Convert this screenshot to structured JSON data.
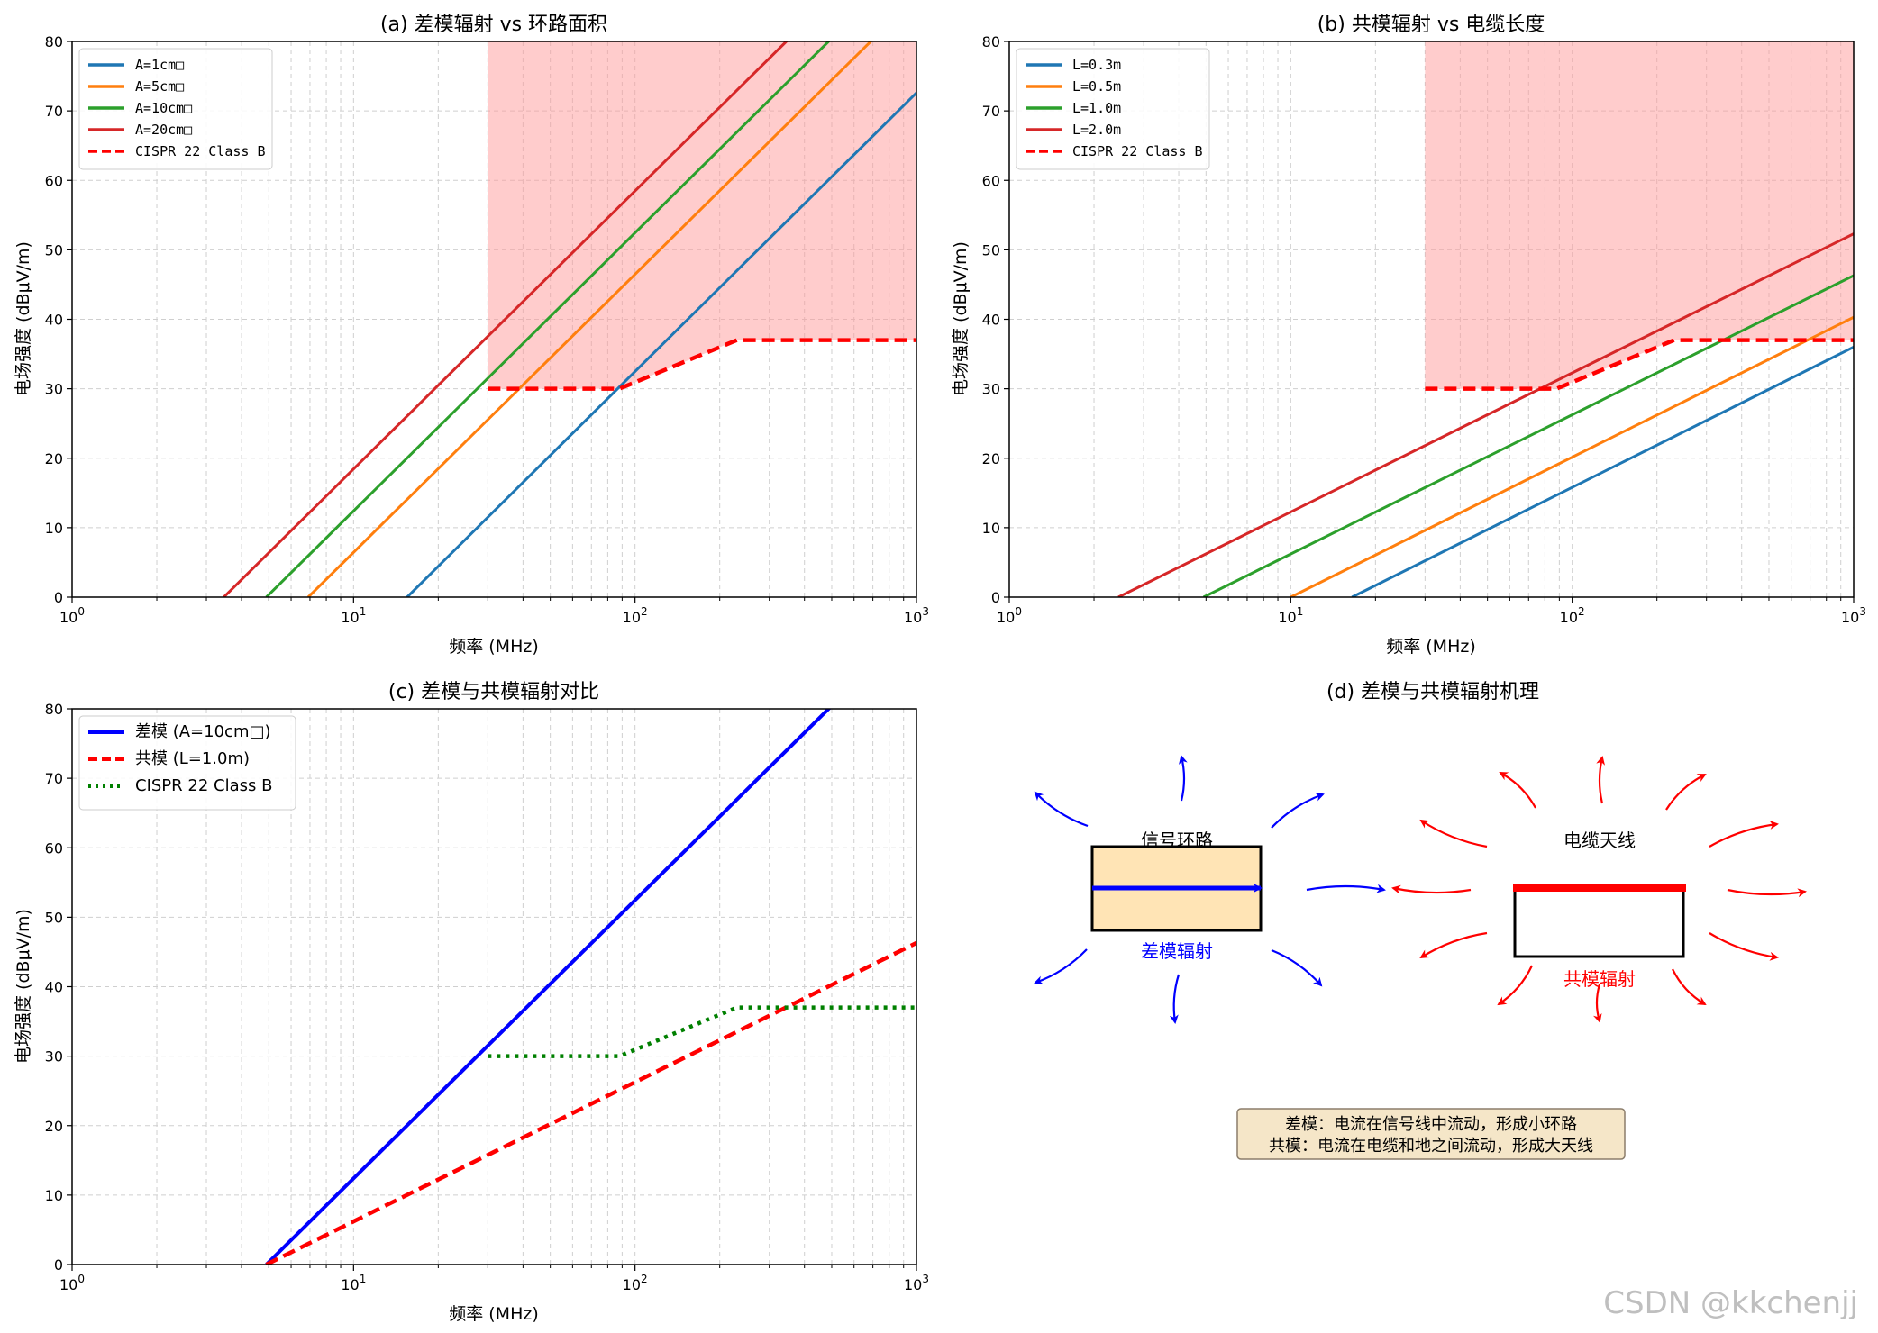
{
  "chart_data": [
    {
      "type": "line",
      "title": "(a) 差模辐射 vs 环路面积",
      "xlabel": "频率 (MHz)",
      "ylabel": "电场强度 (dBμV/m)",
      "xscale": "log",
      "xlim": [
        1,
        1000
      ],
      "ylim": [
        0,
        80
      ],
      "yticks": [
        0,
        10,
        20,
        30,
        40,
        50,
        60,
        70,
        80
      ],
      "grid": true,
      "legend": "top-left",
      "shade": {
        "x_from": 30,
        "x_to": 1000,
        "color": "#ff9a9a"
      },
      "series": [
        {
          "name": "A=1cm□",
          "color": "#1f77b4",
          "points": [
            [
              15.5,
              0
            ],
            [
              1000,
              72.6
            ]
          ]
        },
        {
          "name": "A=5cm□",
          "color": "#ff7f0e",
          "points": [
            [
              6.9,
              0
            ],
            [
              1000,
              86.5
            ]
          ]
        },
        {
          "name": "A=10cm□",
          "color": "#2ca02c",
          "points": [
            [
              4.9,
              0
            ],
            [
              1000,
              92.5
            ]
          ]
        },
        {
          "name": "A=20cm□",
          "color": "#d62728",
          "points": [
            [
              3.46,
              0
            ],
            [
              1000,
              98.5
            ]
          ]
        },
        {
          "name": "CISPR 22 Class B",
          "color": "#ff0000",
          "dash": "dashed",
          "points": [
            [
              30,
              30
            ],
            [
              88,
              30
            ],
            [
              230,
              37
            ],
            [
              1000,
              37
            ]
          ]
        }
      ]
    },
    {
      "type": "line",
      "title": "(b) 共模辐射 vs 电缆长度",
      "xlabel": "频率 (MHz)",
      "ylabel": "电场强度 (dBμV/m)",
      "xscale": "log",
      "xlim": [
        1,
        1000
      ],
      "ylim": [
        0,
        80
      ],
      "yticks": [
        0,
        10,
        20,
        30,
        40,
        50,
        60,
        70,
        80
      ],
      "grid": true,
      "legend": "top-left",
      "shade": {
        "x_from": 30,
        "x_to": 1000,
        "color": "#ff9a9a"
      },
      "series": [
        {
          "name": "L=0.3m",
          "color": "#1f77b4",
          "points": [
            [
              16.5,
              0
            ],
            [
              1000,
              36
            ]
          ]
        },
        {
          "name": "L=0.5m",
          "color": "#ff7f0e",
          "points": [
            [
              10,
              0
            ],
            [
              1000,
              40.3
            ]
          ]
        },
        {
          "name": "L=1.0m",
          "color": "#2ca02c",
          "points": [
            [
              4.9,
              0
            ],
            [
              1000,
              46.3
            ]
          ]
        },
        {
          "name": "L=2.0m",
          "color": "#d62728",
          "points": [
            [
              2.44,
              0
            ],
            [
              1000,
              52.3
            ]
          ]
        },
        {
          "name": "CISPR 22 Class B",
          "color": "#ff0000",
          "dash": "dashed",
          "points": [
            [
              30,
              30
            ],
            [
              88,
              30
            ],
            [
              230,
              37
            ],
            [
              1000,
              37
            ]
          ]
        }
      ]
    },
    {
      "type": "line",
      "title": "(c) 差模与共模辐射对比",
      "xlabel": "频率 (MHz)",
      "ylabel": "电场强度 (dBμV/m)",
      "xscale": "log",
      "xlim": [
        1,
        1000
      ],
      "ylim": [
        0,
        80
      ],
      "yticks": [
        0,
        10,
        20,
        30,
        40,
        50,
        60,
        70,
        80
      ],
      "grid": true,
      "legend": "top-left",
      "series": [
        {
          "name": "差模 (A=10cm□)",
          "color": "#0000ff",
          "points": [
            [
              4.9,
              0
            ],
            [
              1000,
              92.5
            ]
          ]
        },
        {
          "name": "共模 (L=1.0m)",
          "color": "#ff0000",
          "dash": "dashed",
          "points": [
            [
              4.9,
              0
            ],
            [
              1000,
              46.3
            ]
          ]
        },
        {
          "name": "CISPR 22 Class B",
          "color": "#008000",
          "dash": "dotted",
          "points": [
            [
              30,
              30
            ],
            [
              88,
              30
            ],
            [
              230,
              37
            ],
            [
              1000,
              37
            ]
          ]
        }
      ]
    }
  ],
  "xticks": [
    "1",
    "1",
    "2",
    "3"
  ],
  "mechanism": {
    "title": "(d) 差模与共模辐射机理",
    "loop_label": "信号环路",
    "dm_label": "差模辐射",
    "cable_label": "电缆天线",
    "cm_label": "共模辐射",
    "note_line1": "差模：电流在信号线中流动，形成小环路",
    "note_line2": "共模：电流在电缆和地之间流动，形成大天线",
    "dm_color": "#0000ff",
    "cm_color": "#ff0000",
    "box_fill": "#ffe4b5",
    "note_fill": "#f5e6c8"
  },
  "watermark": "CSDN @kkchenjj"
}
